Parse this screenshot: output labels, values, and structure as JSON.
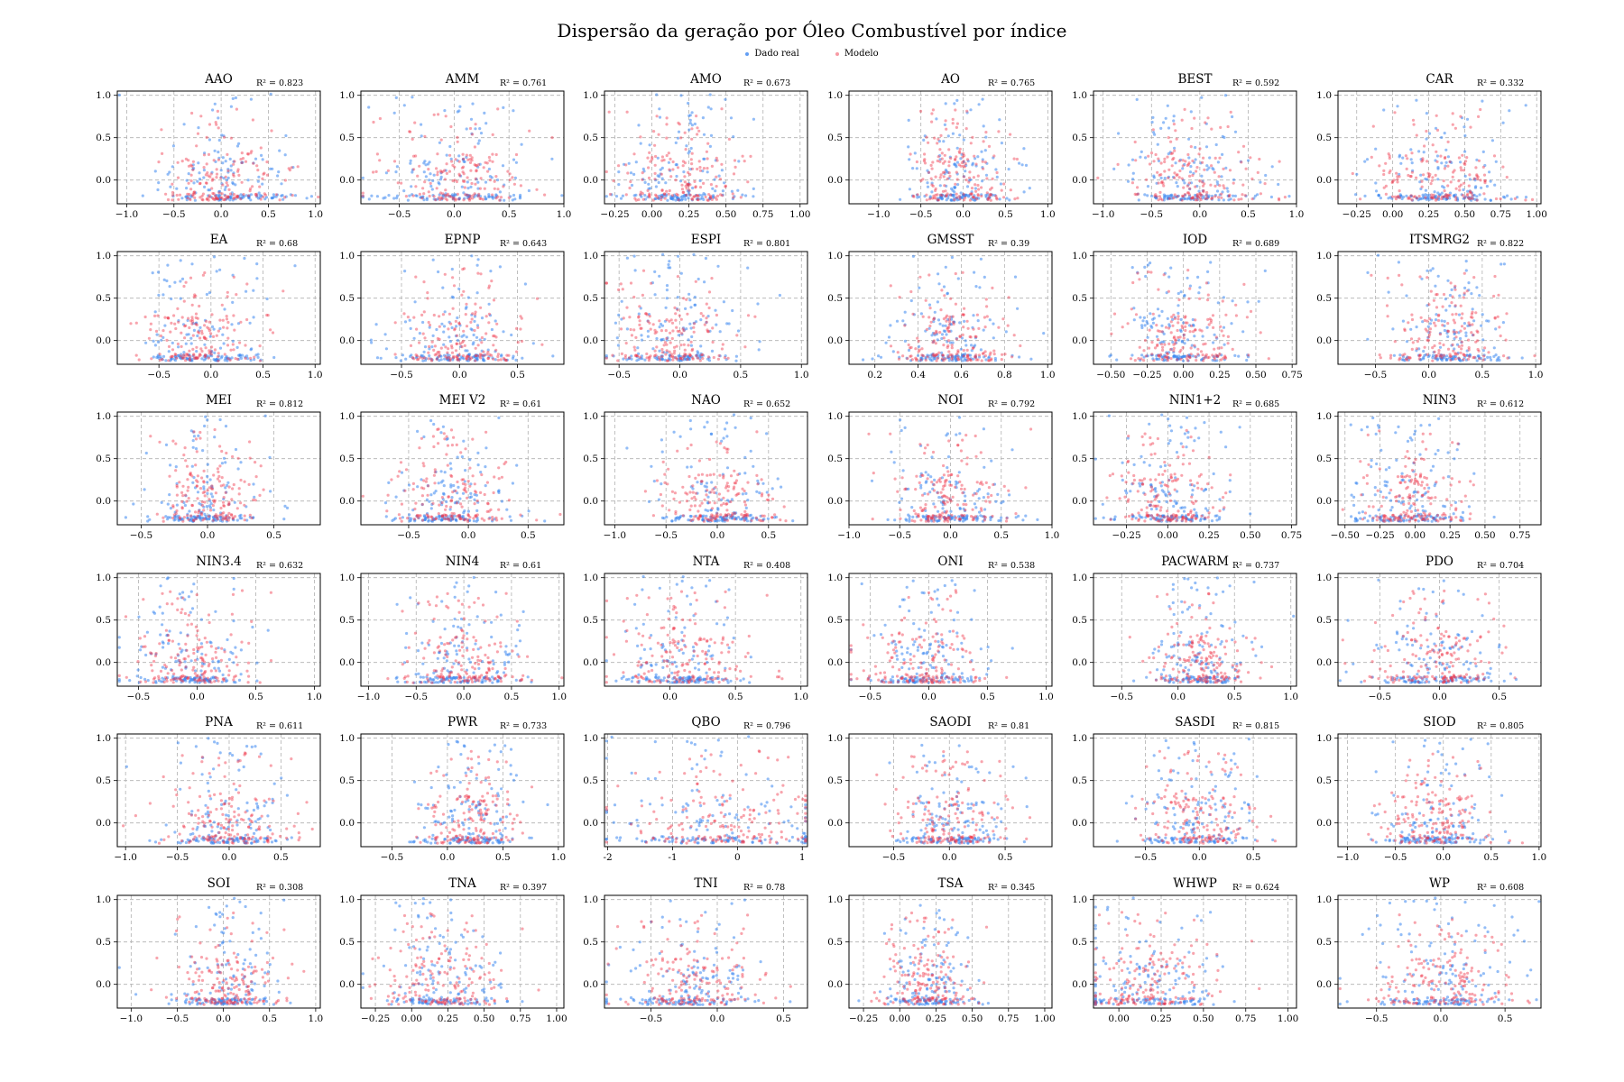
{
  "title": "Dispersão da geração por Óleo Combustível por índice",
  "legend": [
    {
      "label": "Dado real",
      "color": "#3b86f0"
    },
    {
      "label": "Modelo",
      "color": "#f0364a"
    }
  ],
  "chart_data": {
    "type": "scatter",
    "grid": true,
    "legend_placement": "top-center",
    "series_colors": {
      "real": "#3b86f0",
      "model": "#f0364a"
    },
    "yticks": [
      1.0,
      0.5,
      0.0
    ],
    "ylim": [
      -0.28,
      1.05
    ],
    "note": "Synthetic point cloud per panel; positions estimated (values not labeled).",
    "panels": [
      {
        "name": "AAO",
        "r2": "R² = 0.823",
        "xlim": [
          -1.1,
          1.05
        ],
        "xticks": [
          -1.0,
          -0.5,
          0.0,
          0.5,
          1.0
        ],
        "xcenter": 0.05,
        "xspread": 0.35
      },
      {
        "name": "AMM",
        "r2": "R² = 0.761",
        "xlim": [
          -0.85,
          1.0
        ],
        "xticks": [
          -0.5,
          0.0,
          0.5,
          1.0
        ],
        "xcenter": 0.0,
        "xspread": 0.35
      },
      {
        "name": "AMO",
        "r2": "R² = 0.673",
        "xlim": [
          -0.32,
          1.05
        ],
        "xticks": [
          -0.25,
          0.0,
          0.25,
          0.5,
          0.75,
          1.0
        ],
        "xcenter": 0.2,
        "xspread": 0.22
      },
      {
        "name": "AO",
        "r2": "R² = 0.765",
        "xlim": [
          -1.35,
          1.05
        ],
        "xticks": [
          -1.0,
          -0.5,
          0.0,
          0.5,
          1.0
        ],
        "xcenter": -0.05,
        "xspread": 0.3
      },
      {
        "name": "BEST",
        "r2": "R² = 0.592",
        "xlim": [
          -1.1,
          1.0
        ],
        "xticks": [
          -1.0,
          -0.5,
          0.0,
          0.5,
          1.0
        ],
        "xcenter": -0.1,
        "xspread": 0.35
      },
      {
        "name": "CAR",
        "r2": "R² = 0.332",
        "xlim": [
          -0.38,
          1.03
        ],
        "xticks": [
          -0.25,
          0.0,
          0.25,
          0.5,
          0.75,
          1.0
        ],
        "xcenter": 0.3,
        "xspread": 0.25
      },
      {
        "name": "EA",
        "r2": "R² = 0.68",
        "xlim": [
          -0.9,
          1.05
        ],
        "xticks": [
          -0.5,
          0.0,
          0.5,
          1.0
        ],
        "xcenter": -0.1,
        "xspread": 0.28
      },
      {
        "name": "EPNP",
        "r2": "R² = 0.643",
        "xlim": [
          -0.85,
          0.9
        ],
        "xticks": [
          -0.5,
          0.0,
          0.5
        ],
        "xcenter": 0.0,
        "xspread": 0.28
      },
      {
        "name": "ESPI",
        "r2": "R² = 0.801",
        "xlim": [
          -0.62,
          1.05
        ],
        "xticks": [
          -0.5,
          0.0,
          0.5,
          1.0
        ],
        "xcenter": -0.05,
        "xspread": 0.25
      },
      {
        "name": "GMSST",
        "r2": "R² = 0.39",
        "xlim": [
          0.08,
          1.02
        ],
        "xticks": [
          0.2,
          0.4,
          0.6,
          0.8,
          1.0
        ],
        "xcenter": 0.55,
        "xspread": 0.13
      },
      {
        "name": "IOD",
        "r2": "R² = 0.689",
        "xlim": [
          -0.62,
          0.78
        ],
        "xticks": [
          -0.5,
          -0.25,
          0.0,
          0.25,
          0.5,
          0.75
        ],
        "xcenter": 0.0,
        "xspread": 0.2
      },
      {
        "name": "ITSMRG2",
        "r2": "R² = 0.822",
        "xlim": [
          -0.85,
          1.05
        ],
        "xticks": [
          -0.5,
          0.0,
          0.5,
          1.0
        ],
        "xcenter": 0.2,
        "xspread": 0.3
      },
      {
        "name": "MEI",
        "r2": "R² = 0.812",
        "xlim": [
          -0.68,
          0.85
        ],
        "xticks": [
          -0.5,
          0.0,
          0.5
        ],
        "xcenter": 0.0,
        "xspread": 0.2
      },
      {
        "name": "MEI V2",
        "r2": "R² = 0.61",
        "xlim": [
          -0.9,
          0.8
        ],
        "xticks": [
          -0.5,
          0.0,
          0.5
        ],
        "xcenter": -0.15,
        "xspread": 0.25
      },
      {
        "name": "NAO",
        "r2": "R² = 0.652",
        "xlim": [
          -1.1,
          0.88
        ],
        "xticks": [
          -1.0,
          -0.5,
          0.0,
          0.5
        ],
        "xcenter": 0.0,
        "xspread": 0.32
      },
      {
        "name": "NOI",
        "r2": "R² = 0.792",
        "xlim": [
          -1.0,
          1.0
        ],
        "xticks": [
          -1.0,
          -0.5,
          0.0,
          0.5,
          1.0
        ],
        "xcenter": 0.0,
        "xspread": 0.3
      },
      {
        "name": "NIN1+2",
        "r2": "R² = 0.685",
        "xlim": [
          -0.45,
          0.78
        ],
        "xticks": [
          -0.25,
          0.0,
          0.25,
          0.5,
          0.75
        ],
        "xcenter": 0.0,
        "xspread": 0.18
      },
      {
        "name": "NIN3",
        "r2": "R² = 0.612",
        "xlim": [
          -0.55,
          0.9
        ],
        "xticks": [
          -0.5,
          -0.25,
          0.0,
          0.25,
          0.5,
          0.75
        ],
        "xcenter": -0.05,
        "xspread": 0.2
      },
      {
        "name": "NIN3.4",
        "r2": "R² = 0.632",
        "xlim": [
          -0.68,
          1.05
        ],
        "xticks": [
          -0.5,
          0.0,
          0.5,
          1.0
        ],
        "xcenter": -0.05,
        "xspread": 0.25
      },
      {
        "name": "NIN4",
        "r2": "R² = 0.61",
        "xlim": [
          -1.08,
          1.05
        ],
        "xticks": [
          -1.0,
          -0.5,
          0.0,
          0.5,
          1.0
        ],
        "xcenter": 0.0,
        "xspread": 0.35
      },
      {
        "name": "NTA",
        "r2": "R² = 0.408",
        "xlim": [
          -0.5,
          1.05
        ],
        "xticks": [
          0.0,
          0.5,
          1.0
        ],
        "xcenter": 0.1,
        "xspread": 0.25
      },
      {
        "name": "ONI",
        "r2": "R² = 0.538",
        "xlim": [
          -0.68,
          1.05
        ],
        "xticks": [
          -0.5,
          0.0,
          0.5,
          1.0
        ],
        "xcenter": -0.05,
        "xspread": 0.25
      },
      {
        "name": "PACWARM",
        "r2": "R² = 0.737",
        "xlim": [
          -0.75,
          1.05
        ],
        "xticks": [
          -0.5,
          0.0,
          0.5,
          1.0
        ],
        "xcenter": 0.2,
        "xspread": 0.22
      },
      {
        "name": "PDO",
        "r2": "R² = 0.704",
        "xlim": [
          -0.85,
          0.85
        ],
        "xticks": [
          -0.5,
          0.0,
          0.5
        ],
        "xcenter": 0.0,
        "xspread": 0.28
      },
      {
        "name": "PNA",
        "r2": "R² = 0.611",
        "xlim": [
          -1.08,
          0.88
        ],
        "xticks": [
          -1.0,
          -0.5,
          0.0,
          0.5
        ],
        "xcenter": 0.0,
        "xspread": 0.32
      },
      {
        "name": "PWR",
        "r2": "R² = 0.733",
        "xlim": [
          -0.78,
          1.05
        ],
        "xticks": [
          -0.5,
          0.0,
          0.5,
          1.0
        ],
        "xcenter": 0.2,
        "xspread": 0.25
      },
      {
        "name": "QBO",
        "r2": "R² = 0.796",
        "xlim": [
          -2.05,
          1.08
        ],
        "xticks": [
          -2,
          -1,
          0,
          1
        ],
        "xcenter": -0.3,
        "xspread": 0.85
      },
      {
        "name": "SAODI",
        "r2": "R² = 0.81",
        "xlim": [
          -0.9,
          0.92
        ],
        "xticks": [
          -0.5,
          0.0,
          0.5
        ],
        "xcenter": 0.0,
        "xspread": 0.28
      },
      {
        "name": "SASDI",
        "r2": "R² = 0.815",
        "xlim": [
          -0.98,
          0.9
        ],
        "xticks": [
          -0.5,
          0.0,
          0.5
        ],
        "xcenter": 0.0,
        "xspread": 0.28
      },
      {
        "name": "SIOD",
        "r2": "R² = 0.805",
        "xlim": [
          -1.1,
          1.02
        ],
        "xticks": [
          -1.0,
          -0.5,
          0.0,
          0.5,
          1.0
        ],
        "xcenter": -0.1,
        "xspread": 0.3
      },
      {
        "name": "SOI",
        "r2": "R² = 0.308",
        "xlim": [
          -1.15,
          1.05
        ],
        "xticks": [
          -1.0,
          -0.5,
          0.0,
          0.5,
          1.0
        ],
        "xcenter": 0.05,
        "xspread": 0.3
      },
      {
        "name": "TNA",
        "r2": "R² = 0.397",
        "xlim": [
          -0.35,
          1.05
        ],
        "xticks": [
          -0.25,
          0.0,
          0.25,
          0.5,
          0.75,
          1.0
        ],
        "xcenter": 0.2,
        "xspread": 0.2
      },
      {
        "name": "TNI",
        "r2": "R² = 0.78",
        "xlim": [
          -0.85,
          0.68
        ],
        "xticks": [
          -0.5,
          0.0,
          0.5
        ],
        "xcenter": -0.2,
        "xspread": 0.28
      },
      {
        "name": "TSA",
        "r2": "R² = 0.345",
        "xlim": [
          -0.35,
          1.05
        ],
        "xticks": [
          -0.25,
          0.0,
          0.25,
          0.5,
          0.75,
          1.0
        ],
        "xcenter": 0.2,
        "xspread": 0.15
      },
      {
        "name": "WHWP",
        "r2": "R² = 0.624",
        "xlim": [
          -0.15,
          1.05
        ],
        "xticks": [
          0.0,
          0.25,
          0.5,
          0.75,
          1.0
        ],
        "xcenter": 0.15,
        "xspread": 0.22
      },
      {
        "name": "WP",
        "r2": "R² = 0.608",
        "xlim": [
          -0.8,
          0.78
        ],
        "xticks": [
          -0.5,
          0.0,
          0.5
        ],
        "xcenter": 0.0,
        "xspread": 0.3
      }
    ]
  }
}
